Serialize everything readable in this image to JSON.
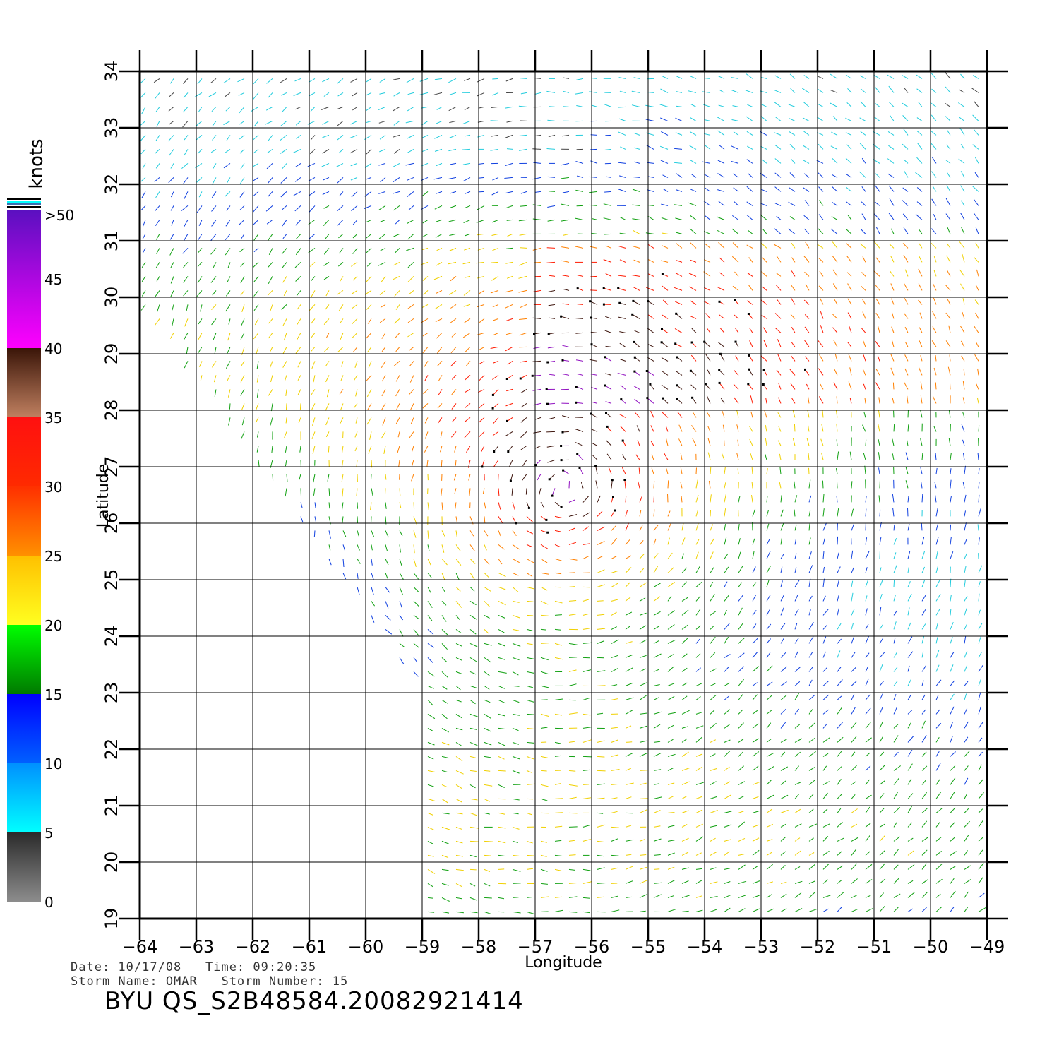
{
  "chart_data": {
    "type": "wind-vector-map",
    "xlabel": "Longitude",
    "ylabel": "Latitude",
    "xlim": [
      -64,
      -49
    ],
    "ylim": [
      19,
      34
    ],
    "x_ticks": [
      "−64",
      "−63",
      "−62",
      "−61",
      "−60",
      "−59",
      "−58",
      "−57",
      "−56",
      "−55",
      "−54",
      "−53",
      "−52",
      "−51",
      "−50",
      "−49"
    ],
    "y_ticks": [
      "19",
      "20",
      "21",
      "22",
      "23",
      "24",
      "25",
      "26",
      "27",
      "28",
      "29",
      "30",
      "31",
      "32",
      "33",
      "34"
    ],
    "grid": true,
    "storm_center": {
      "lon": -56.5,
      "lat": 26.6
    },
    "colorbar": {
      "title": "knots",
      "labels": [
        "0",
        "5",
        "10",
        "15",
        "20",
        "25",
        "30",
        "35",
        "40",
        "45",
        ">50"
      ],
      "bands": [
        {
          "from": 0,
          "to": 5,
          "colors": [
            "#8c8c8c",
            "#2a2a2a"
          ]
        },
        {
          "from": 5,
          "to": 10,
          "colors": [
            "#00ffff",
            "#0090ff"
          ]
        },
        {
          "from": 10,
          "to": 15,
          "colors": [
            "#0060ff",
            "#0000ff"
          ]
        },
        {
          "from": 15,
          "to": 20,
          "colors": [
            "#007a00",
            "#00ff00"
          ]
        },
        {
          "from": 20,
          "to": 25,
          "colors": [
            "#ffff20",
            "#ffc000"
          ]
        },
        {
          "from": 25,
          "to": 30,
          "colors": [
            "#ff9000",
            "#ff3000"
          ]
        },
        {
          "from": 30,
          "to": 35,
          "colors": [
            "#ff2a00",
            "#ff1010"
          ]
        },
        {
          "from": 35,
          "to": 40,
          "colors": [
            "#c08060",
            "#3a1508"
          ]
        },
        {
          "from": 40,
          "to": 50,
          "colors": [
            "#ff00ff",
            "#5a10c0"
          ]
        }
      ]
    }
  },
  "info": {
    "date_line": "Date: 10/17/08   Time: 09:20:35",
    "storm_line": "Storm Name: OMAR   Storm Number: 15",
    "product_id": "BYU QS_S2B48584.20082921414"
  }
}
